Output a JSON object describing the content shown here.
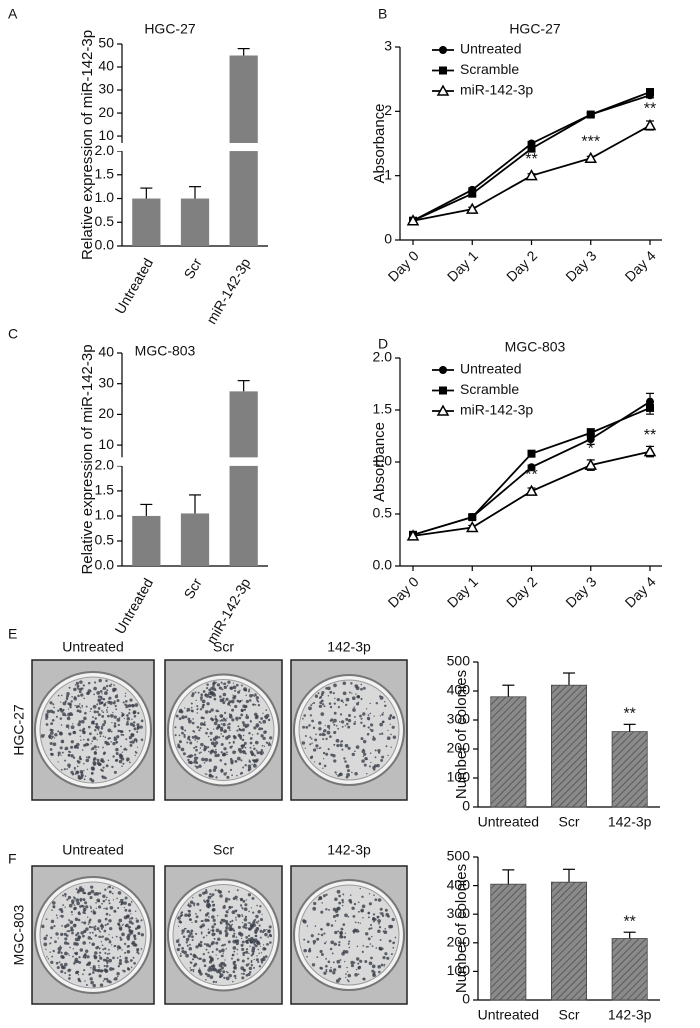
{
  "chart_data": [
    {
      "type": "bar",
      "panel": "A",
      "title": "HGC-27",
      "y_label": "Relative expression of miR-142-3p",
      "categories": [
        "Untreated",
        "Scr",
        "miR-142-3p"
      ],
      "values": [
        1.0,
        1.0,
        45
      ],
      "errors": [
        0.22,
        0.25,
        3
      ],
      "color": "#808080",
      "ylim": [
        0,
        50
      ],
      "y_break": [
        2,
        7
      ],
      "yticks": [
        {
          "value": 0,
          "label": "0.0"
        },
        {
          "value": 0.5,
          "label": "0.5"
        },
        {
          "value": 1,
          "label": "1.0"
        },
        {
          "value": 1.5,
          "label": "1.5"
        },
        {
          "value": 2,
          "label": "2.0"
        },
        10,
        20,
        30,
        40,
        50
      ]
    },
    {
      "type": "line",
      "panel": "B",
      "title": "HGC-27",
      "y_label": "Absorbance",
      "categories": [
        "Day 0",
        "Day 1",
        "Day 2",
        "Day 3",
        "Day 4"
      ],
      "series": [
        {
          "name": "Untreated",
          "color": "#000000",
          "marker": "circle",
          "values": [
            0.3,
            0.78,
            1.5,
            1.95,
            2.25
          ],
          "errors": [
            0.02,
            0.03,
            0.03,
            0.03,
            0.04
          ]
        },
        {
          "name": "Scramble",
          "color": "#000000",
          "marker": "square",
          "values": [
            0.3,
            0.72,
            1.42,
            1.95,
            2.3
          ],
          "errors": [
            0.02,
            0.03,
            0.03,
            0.03,
            0.04
          ]
        },
        {
          "name": "miR-142-3p",
          "color": "#000000",
          "marker": "triangle",
          "values": [
            0.3,
            0.48,
            1.0,
            1.27,
            1.78
          ],
          "errors": [
            0.02,
            0.03,
            0.03,
            0.03,
            0.07
          ]
        }
      ],
      "annotations": [
        null,
        null,
        "**",
        "***",
        "**"
      ],
      "ylim": [
        0,
        3
      ],
      "yticks": [
        0,
        1,
        2,
        3
      ]
    },
    {
      "type": "bar",
      "panel": "C",
      "title": "MGC-803",
      "y_label": "Relative expression of miR-142-3p",
      "categories": [
        "Untreated",
        "Scr",
        "miR-142-3p"
      ],
      "values": [
        1.0,
        1.05,
        27.5
      ],
      "errors": [
        0.23,
        0.37,
        3.5
      ],
      "color": "#808080",
      "ylim": [
        0,
        40
      ],
      "y_break": [
        2,
        6
      ],
      "yticks": [
        {
          "value": 0,
          "label": "0.0"
        },
        {
          "value": 0.5,
          "label": "0.5"
        },
        {
          "value": 1,
          "label": "1.0"
        },
        {
          "value": 1.5,
          "label": "1.5"
        },
        {
          "value": 2,
          "label": "2.0"
        },
        10,
        20,
        30,
        40
      ]
    },
    {
      "type": "line",
      "panel": "D",
      "title": "MGC-803",
      "y_label": "Absorbance",
      "categories": [
        "Day 0",
        "Day 1",
        "Day 2",
        "Day 3",
        "Day 4"
      ],
      "series": [
        {
          "name": "Untreated",
          "color": "#000000",
          "marker": "circle",
          "values": [
            0.3,
            0.47,
            0.95,
            1.22,
            1.58
          ],
          "errors": [
            0.02,
            0.02,
            0.02,
            0.05,
            0.08
          ]
        },
        {
          "name": "Scramble",
          "color": "#000000",
          "marker": "square",
          "values": [
            0.3,
            0.47,
            1.08,
            1.28,
            1.52
          ],
          "errors": [
            0.02,
            0.02,
            0.02,
            0.04,
            0.06
          ]
        },
        {
          "name": "miR-142-3p",
          "color": "#000000",
          "marker": "triangle",
          "values": [
            0.29,
            0.37,
            0.72,
            0.97,
            1.1
          ],
          "errors": [
            0.02,
            0.02,
            0.03,
            0.05,
            0.05
          ]
        }
      ],
      "annotations": [
        null,
        null,
        "**",
        "*",
        "**"
      ],
      "ylim": [
        0,
        2
      ],
      "yticks": [
        {
          "value": 0,
          "label": "0.0"
        },
        {
          "value": 0.5,
          "label": "0.5"
        },
        {
          "value": 1,
          "label": "1.0"
        },
        {
          "value": 1.5,
          "label": "1.5"
        },
        {
          "value": 2,
          "label": "2.0"
        }
      ]
    },
    {
      "type": "bar",
      "y_label": "Number of colonies",
      "categories": [
        "Untreated",
        "Scr",
        "142-3p"
      ],
      "values": [
        380,
        420,
        260
      ],
      "errors": [
        40,
        42,
        25
      ],
      "annotations": [
        null,
        null,
        "**"
      ],
      "color": "#808080",
      "hatch": true,
      "ylim": [
        0,
        500
      ],
      "yticks": [
        0,
        100,
        200,
        300,
        400,
        500
      ]
    },
    {
      "type": "bar",
      "y_label": "Number of colonies",
      "categories": [
        "Untreated",
        "Scr",
        "142-3p"
      ],
      "values": [
        405,
        412,
        215
      ],
      "errors": [
        50,
        45,
        22
      ],
      "annotations": [
        null,
        null,
        "**"
      ],
      "color": "#808080",
      "hatch": true,
      "ylim": [
        0,
        500
      ],
      "yticks": [
        0,
        100,
        200,
        300,
        400,
        500
      ]
    }
  ],
  "colony_panels": [
    {
      "panel": "E",
      "cell_line": "HGC-27",
      "plates": [
        "Untreated",
        "Scr",
        "142-3p"
      ]
    },
    {
      "panel": "F",
      "cell_line": "MGC-803",
      "plates": [
        "Untreated",
        "Scr",
        "142-3p"
      ]
    }
  ]
}
